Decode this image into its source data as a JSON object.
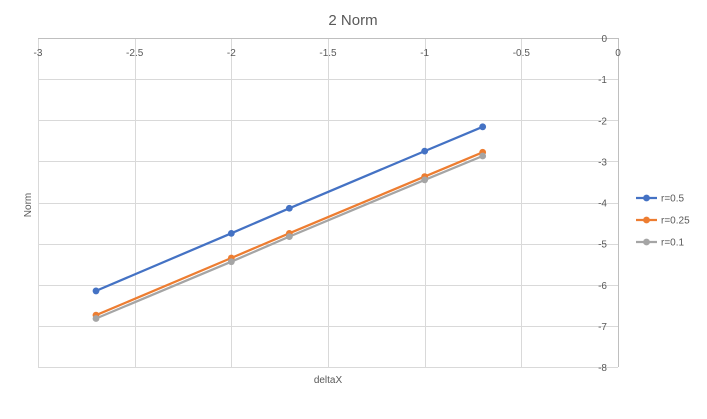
{
  "chart_data": {
    "type": "line",
    "title": "2 Norm",
    "xlabel": "deltaX",
    "ylabel": "Norm",
    "xlim": [
      -3,
      0
    ],
    "ylim": [
      -8,
      0
    ],
    "x_ticks": [
      -3,
      -2.5,
      -2,
      -1.5,
      -1,
      -0.5,
      0
    ],
    "y_ticks": [
      0,
      -1,
      -2,
      -3,
      -4,
      -5,
      -6,
      -7,
      -8
    ],
    "grid": true,
    "x_axis_position": "top",
    "y_axis_position": "right",
    "legend_position": "right",
    "series": [
      {
        "name": "r=0.5",
        "color": "#4472c4",
        "x": [
          -2.7,
          -2.0,
          -1.7,
          -1.0,
          -0.7
        ],
        "y": [
          -6.15,
          -4.75,
          -4.14,
          -2.75,
          -2.16
        ]
      },
      {
        "name": "r=0.25",
        "color": "#ed7d31",
        "x": [
          -2.7,
          -2.0,
          -1.7,
          -1.0,
          -0.7
        ],
        "y": [
          -6.74,
          -5.35,
          -4.75,
          -3.37,
          -2.78
        ]
      },
      {
        "name": "r=0.1",
        "color": "#a5a5a5",
        "x": [
          -2.7,
          -2.0,
          -1.7,
          -1.0,
          -0.7
        ],
        "y": [
          -6.82,
          -5.44,
          -4.83,
          -3.45,
          -2.87
        ]
      }
    ]
  }
}
